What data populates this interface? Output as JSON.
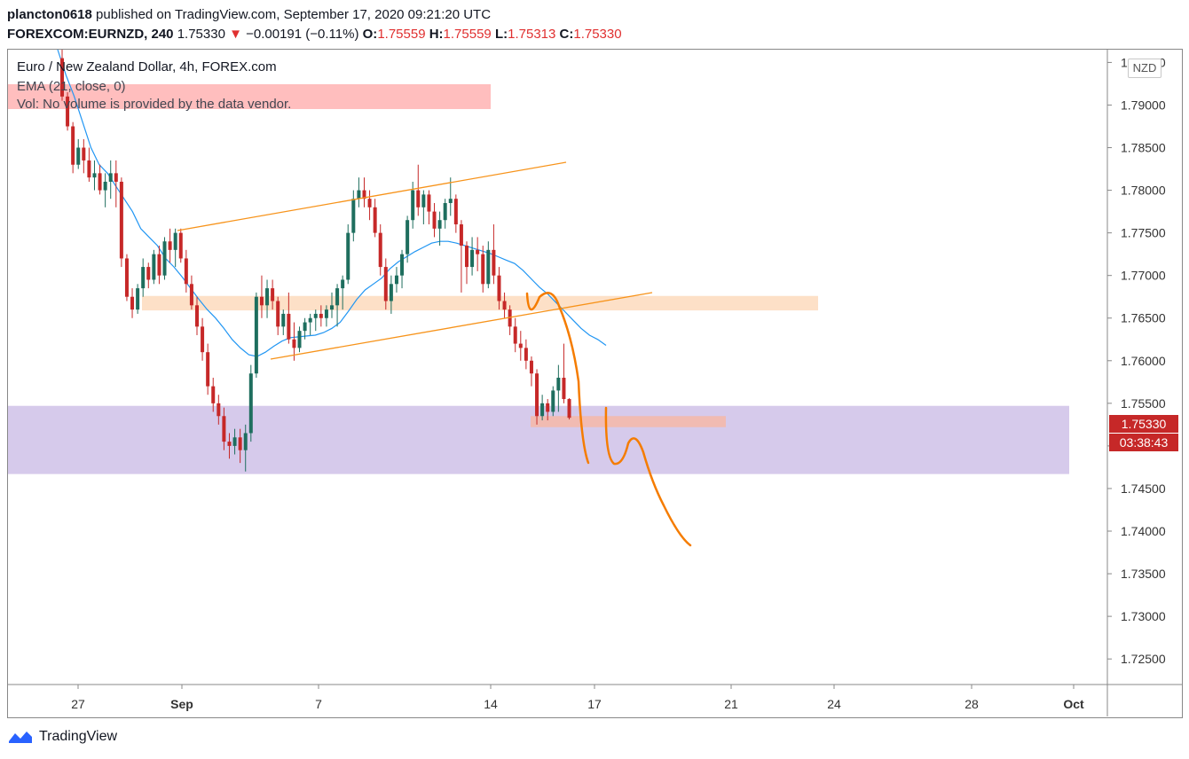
{
  "header": {
    "author": "plancton0618",
    "published_text": "published on TradingView.com, September 17, 2020 09:21:20 UTC",
    "symbol": "FOREXCOM:EURNZD, 240",
    "price": "1.75330",
    "change": "−0.00191 (−0.11%)",
    "o_label": "O:",
    "o": "1.75559",
    "h_label": "H:",
    "h": "1.75559",
    "l_label": "L:",
    "l": "1.75313",
    "c_label": "C:",
    "c": "1.75330"
  },
  "legend": {
    "title": "Euro / New Zealand Dollar, 4h, FOREX.com",
    "ema": "EMA (21, close, 0)",
    "vol": "Vol: No volume is provided by the data vendor."
  },
  "currency": "NZD",
  "price_tag": "1.75330",
  "countdown": "03:38:43",
  "branding": "TradingView",
  "colors": {
    "up": "#26a69a",
    "up_body": "#1e6e5e",
    "down": "#c62828",
    "ema": "#2196f3",
    "trendline": "#f7931a",
    "projection": "#f57c00",
    "support_zone": "#d1c4e9",
    "resistance_zone": "#fcd5b4",
    "target_zone": "#f6b8a8",
    "legend_highlight": "#ffb3b3"
  },
  "chart_data": {
    "type": "candlestick",
    "timeframe": "4h",
    "ylim": [
      1.722,
      1.7965
    ],
    "y_ticks": [
      "1.72500",
      "1.73000",
      "1.73500",
      "1.74000",
      "1.74500",
      "1.75000",
      "1.75500",
      "1.76000",
      "1.76500",
      "1.77000",
      "1.77500",
      "1.78000",
      "1.78500",
      "1.79000",
      "1.79500"
    ],
    "x_ticks": [
      "27",
      "Sep",
      "7",
      "14",
      "17",
      "21",
      "24",
      "28",
      "Oct"
    ],
    "candles": [
      [
        1.7955,
        1.7965,
        1.7905,
        1.791
      ],
      [
        1.791,
        1.7915,
        1.787,
        1.7875
      ],
      [
        1.7875,
        1.788,
        1.782,
        1.783
      ],
      [
        1.783,
        1.786,
        1.7825,
        1.785
      ],
      [
        1.785,
        1.786,
        1.782,
        1.7835
      ],
      [
        1.7835,
        1.785,
        1.781,
        1.7815
      ],
      [
        1.7815,
        1.7835,
        1.78,
        1.782
      ],
      [
        1.782,
        1.783,
        1.7795,
        1.78
      ],
      [
        1.78,
        1.782,
        1.778,
        1.781
      ],
      [
        1.781,
        1.7835,
        1.779,
        1.782
      ],
      [
        1.782,
        1.7835,
        1.778,
        1.781
      ],
      [
        1.781,
        1.7815,
        1.771,
        1.772
      ],
      [
        1.772,
        1.7725,
        1.767,
        1.7675
      ],
      [
        1.7675,
        1.7685,
        1.765,
        1.766
      ],
      [
        1.766,
        1.769,
        1.7655,
        1.7685
      ],
      [
        1.7685,
        1.772,
        1.7675,
        1.771
      ],
      [
        1.771,
        1.7715,
        1.7685,
        1.7695
      ],
      [
        1.7695,
        1.773,
        1.769,
        1.7725
      ],
      [
        1.7725,
        1.7735,
        1.769,
        1.77
      ],
      [
        1.77,
        1.7745,
        1.7695,
        1.774
      ],
      [
        1.774,
        1.7755,
        1.7715,
        1.773
      ],
      [
        1.773,
        1.7755,
        1.771,
        1.775
      ],
      [
        1.775,
        1.7755,
        1.7715,
        1.772
      ],
      [
        1.772,
        1.773,
        1.768,
        1.769
      ],
      [
        1.769,
        1.77,
        1.766,
        1.7665
      ],
      [
        1.7665,
        1.7675,
        1.763,
        1.764
      ],
      [
        1.764,
        1.765,
        1.76,
        1.761
      ],
      [
        1.761,
        1.762,
        1.756,
        1.757
      ],
      [
        1.757,
        1.758,
        1.754,
        1.755
      ],
      [
        1.755,
        1.756,
        1.7525,
        1.7535
      ],
      [
        1.7535,
        1.7545,
        1.7495,
        1.7505
      ],
      [
        1.7505,
        1.7515,
        1.7485,
        1.75
      ],
      [
        1.75,
        1.752,
        1.749,
        1.751
      ],
      [
        1.751,
        1.752,
        1.748,
        1.7495
      ],
      [
        1.7495,
        1.7525,
        1.747,
        1.7515
      ],
      [
        1.7515,
        1.7595,
        1.7505,
        1.7585
      ],
      [
        1.7585,
        1.768,
        1.758,
        1.7675
      ],
      [
        1.7675,
        1.77,
        1.765,
        1.7665
      ],
      [
        1.7665,
        1.7695,
        1.765,
        1.7685
      ],
      [
        1.7685,
        1.7695,
        1.766,
        1.767
      ],
      [
        1.767,
        1.7675,
        1.763,
        1.764
      ],
      [
        1.764,
        1.766,
        1.763,
        1.7655
      ],
      [
        1.7655,
        1.768,
        1.762,
        1.7625
      ],
      [
        1.7625,
        1.7645,
        1.76,
        1.7615
      ],
      [
        1.7615,
        1.764,
        1.761,
        1.7635
      ],
      [
        1.7635,
        1.765,
        1.7625,
        1.7645
      ],
      [
        1.7645,
        1.7655,
        1.763,
        1.765
      ],
      [
        1.765,
        1.766,
        1.7635,
        1.7655
      ],
      [
        1.7655,
        1.7665,
        1.764,
        1.765
      ],
      [
        1.765,
        1.7665,
        1.764,
        1.766
      ],
      [
        1.766,
        1.768,
        1.765,
        1.7665
      ],
      [
        1.7665,
        1.769,
        1.764,
        1.7685
      ],
      [
        1.7685,
        1.77,
        1.766,
        1.7695
      ],
      [
        1.7695,
        1.776,
        1.769,
        1.775
      ],
      [
        1.775,
        1.78,
        1.774,
        1.779
      ],
      [
        1.779,
        1.7815,
        1.778,
        1.78
      ],
      [
        1.78,
        1.7815,
        1.778,
        1.779
      ],
      [
        1.779,
        1.78,
        1.7765,
        1.778
      ],
      [
        1.778,
        1.779,
        1.7745,
        1.775
      ],
      [
        1.775,
        1.776,
        1.77,
        1.771
      ],
      [
        1.771,
        1.772,
        1.766,
        1.767
      ],
      [
        1.767,
        1.77,
        1.7655,
        1.769
      ],
      [
        1.769,
        1.771,
        1.768,
        1.77
      ],
      [
        1.77,
        1.773,
        1.7685,
        1.7725
      ],
      [
        1.7725,
        1.777,
        1.7715,
        1.7765
      ],
      [
        1.7765,
        1.781,
        1.7755,
        1.78
      ],
      [
        1.78,
        1.783,
        1.777,
        1.778
      ],
      [
        1.778,
        1.78,
        1.776,
        1.7795
      ],
      [
        1.7795,
        1.78,
        1.776,
        1.7775
      ],
      [
        1.7775,
        1.7785,
        1.7745,
        1.7755
      ],
      [
        1.7755,
        1.7775,
        1.7735,
        1.7765
      ],
      [
        1.7765,
        1.779,
        1.7755,
        1.7785
      ],
      [
        1.7785,
        1.7815,
        1.777,
        1.779
      ],
      [
        1.779,
        1.7795,
        1.775,
        1.776
      ],
      [
        1.776,
        1.7765,
        1.768,
        1.7735
      ],
      [
        1.7735,
        1.774,
        1.769,
        1.771
      ],
      [
        1.771,
        1.7745,
        1.77,
        1.773
      ],
      [
        1.773,
        1.7745,
        1.7705,
        1.7725
      ],
      [
        1.7725,
        1.7735,
        1.768,
        1.769
      ],
      [
        1.769,
        1.774,
        1.7685,
        1.773
      ],
      [
        1.773,
        1.776,
        1.769,
        1.77
      ],
      [
        1.77,
        1.771,
        1.766,
        1.767
      ],
      [
        1.767,
        1.768,
        1.765,
        1.766
      ],
      [
        1.766,
        1.7665,
        1.763,
        1.764
      ],
      [
        1.764,
        1.765,
        1.761,
        1.762
      ],
      [
        1.762,
        1.7635,
        1.76,
        1.7615
      ],
      [
        1.7615,
        1.7625,
        1.759,
        1.76
      ],
      [
        1.76,
        1.7605,
        1.757,
        1.7585
      ],
      [
        1.7585,
        1.759,
        1.7525,
        1.7535
      ],
      [
        1.7535,
        1.756,
        1.753,
        1.755
      ],
      [
        1.755,
        1.7555,
        1.753,
        1.754
      ],
      [
        1.754,
        1.757,
        1.7535,
        1.7565
      ],
      [
        1.7565,
        1.7595,
        1.754,
        1.758
      ],
      [
        1.758,
        1.762,
        1.755,
        1.7555
      ],
      [
        1.7555,
        1.7556,
        1.7531,
        1.7533
      ]
    ],
    "ema_21": [
      1.7965,
      1.7935,
      1.791,
      1.788,
      1.785,
      1.783,
      1.782,
      1.7805,
      1.779,
      1.7775,
      1.7755,
      1.7745,
      1.7735,
      1.772,
      1.771,
      1.7698,
      1.7685,
      1.7672,
      1.766,
      1.765,
      1.7638,
      1.7625,
      1.7615,
      1.7607,
      1.7605,
      1.761,
      1.7617,
      1.7623,
      1.7627,
      1.7628,
      1.7629,
      1.763,
      1.7633,
      1.7638,
      1.7645,
      1.7658,
      1.7672,
      1.7683,
      1.769,
      1.7697,
      1.7708,
      1.7716,
      1.7722,
      1.7728,
      1.7733,
      1.7738,
      1.774,
      1.774,
      1.7738,
      1.7735,
      1.7732,
      1.7729,
      1.7726,
      1.7722,
      1.7718,
      1.7714,
      1.7706,
      1.7696,
      1.7686,
      1.7678,
      1.7668,
      1.7658,
      1.7648,
      1.7638,
      1.763,
      1.7625,
      1.7618
    ],
    "support_zone": [
      1.7467,
      1.7547
    ],
    "resistance_zone": [
      1.7659,
      1.7676
    ],
    "target_zone": [
      1.7522,
      1.7535
    ],
    "last_price": 1.7533
  }
}
